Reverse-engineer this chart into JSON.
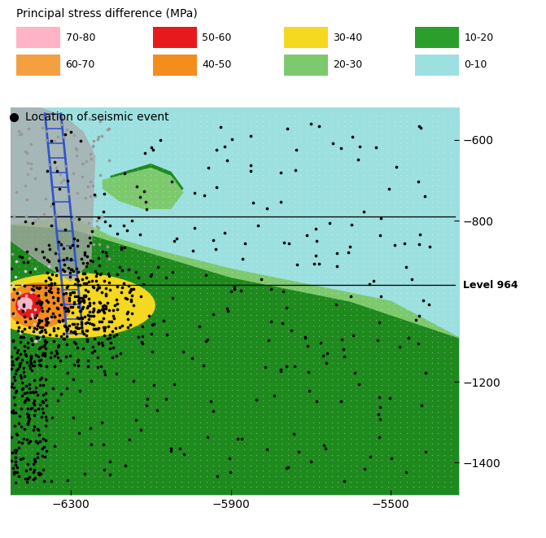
{
  "title": "Principal stress difference (MPa)",
  "seismic_label": "Location of seismic event",
  "xlim": [
    -6450,
    -5330
  ],
  "ylim": [
    -1480,
    -520
  ],
  "xticks": [
    -6300,
    -5900,
    -5500
  ],
  "yticks": [
    -600,
    -800,
    -1200,
    -1400
  ],
  "level_964_y": -960,
  "level_964_label": "Level 964",
  "hline1_y": -790,
  "hline2_y": -960,
  "zone_colors": {
    "cyan_bg": "#9de0e0",
    "light_green": "#7dc96e",
    "green": "#2b9e2b",
    "dark_green": "#1e8a1e",
    "yellow": "#f5d820",
    "orange": "#f58c1e",
    "red": "#e8191c",
    "pink": "#ffb3c6",
    "peach": "#f5a040",
    "grey": "#aaaaaa"
  },
  "row1": [
    [
      "70-80",
      "#ffb3c6"
    ],
    [
      "50-60",
      "#e8191c"
    ],
    [
      "30-40",
      "#f5d820"
    ],
    [
      "10-20",
      "#2b9e2b"
    ]
  ],
  "row2": [
    [
      "60-70",
      "#f5a040"
    ],
    [
      "40-50",
      "#f58c1e"
    ],
    [
      "20-30",
      "#7dc96e"
    ],
    [
      "0-10",
      "#9de0e0"
    ]
  ]
}
